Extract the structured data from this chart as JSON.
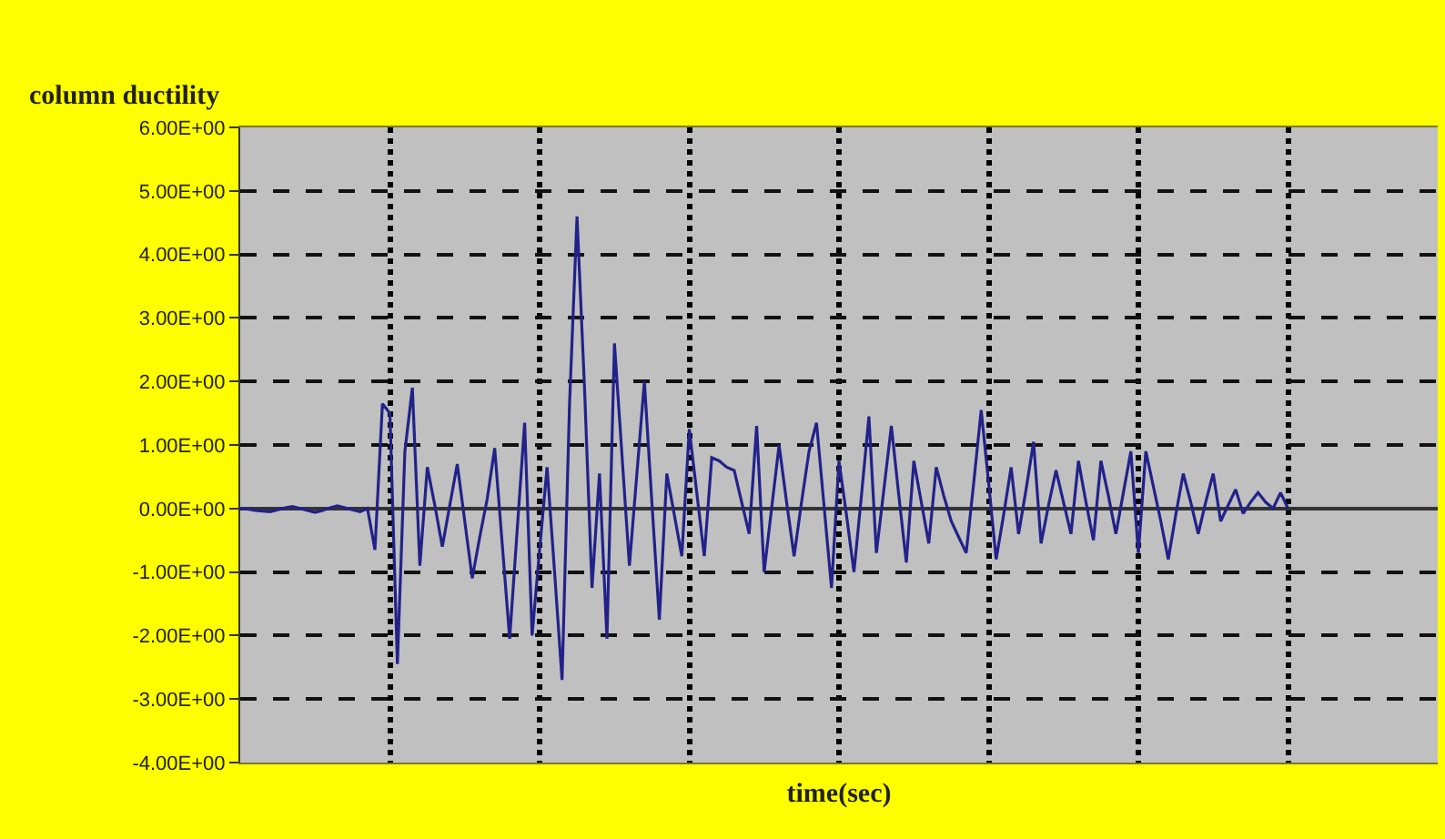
{
  "chart_data": {
    "type": "line",
    "ylabel": "column ductility",
    "xlabel": "time(sec)",
    "categories": [
      null,
      null,
      null,
      null,
      null,
      null,
      null,
      null,
      null,
      null,
      null,
      null,
      null,
      null,
      null,
      null,
      null,
      null,
      null,
      null,
      null,
      null,
      null,
      null,
      null,
      null,
      null,
      null,
      null,
      null,
      null,
      null,
      null,
      null,
      null,
      null,
      null,
      null,
      null,
      null,
      null,
      null,
      null,
      null,
      null,
      null,
      null,
      null,
      null,
      null,
      null,
      null,
      null,
      null,
      null,
      null,
      null,
      null,
      null,
      null,
      null,
      null,
      null,
      null,
      null,
      null,
      null,
      null,
      null,
      null,
      null,
      null,
      null,
      null,
      null,
      null,
      null,
      null,
      null,
      null,
      null,
      null,
      null,
      null,
      null,
      null,
      null,
      null,
      null,
      null,
      null,
      null,
      null,
      null,
      null,
      null,
      null,
      null,
      null,
      null,
      null,
      null,
      null,
      null,
      null,
      null,
      null,
      null,
      null,
      null,
      null,
      null,
      null,
      null,
      null,
      null,
      null,
      null,
      null,
      null,
      null,
      null,
      null,
      null,
      null,
      null,
      null,
      null,
      null,
      null,
      null,
      null,
      null,
      null,
      null,
      null,
      null,
      null,
      null,
      null,
      null,
      null,
      null,
      null,
      null,
      null,
      null,
      null,
      null,
      null,
      null,
      null,
      null,
      null,
      null,
      null,
      null,
      null,
      null,
      null,
      null
    ],
    "ylim": [
      -4,
      6
    ],
    "yticks": [
      {
        "value": 6,
        "label": "6.00E+00"
      },
      {
        "value": 5,
        "label": "5.00E+00"
      },
      {
        "value": 4,
        "label": "4.00E+00"
      },
      {
        "value": 3,
        "label": "3.00E+00"
      },
      {
        "value": 2,
        "label": "2.00E+00"
      },
      {
        "value": 1,
        "label": "1.00E+00"
      },
      {
        "value": 0,
        "label": "0.00E+00"
      },
      {
        "value": -1,
        "label": "-1.00E+00"
      },
      {
        "value": -2,
        "label": "-2.00E+00"
      },
      {
        "value": -3,
        "label": "-3.00E+00"
      },
      {
        "value": -4,
        "label": "-4.00E+00"
      }
    ],
    "grid": true,
    "marker": "none",
    "line_style": "solid",
    "series": [
      {
        "color": "#22228a",
        "values": [
          0,
          -0.01,
          -0.03,
          -0.04,
          -0.05,
          -0.02,
          0.01,
          0.03,
          0,
          -0.03,
          -0.06,
          -0.03,
          0.01,
          0.04,
          0.01,
          -0.02,
          -0.05,
          0,
          -0.65,
          1.65,
          1.5,
          -2.45,
          0.9,
          1.9,
          -0.9,
          0.65,
          0.05,
          -0.6,
          0.05,
          0.7,
          -0.2,
          -1.1,
          -0.45,
          0.15,
          0.95,
          -0.55,
          -2.05,
          -0.35,
          1.35,
          -2.0,
          -0.65,
          0.65,
          -1.0,
          -2.7,
          1.65,
          4.6,
          1.9,
          -1.25,
          0.55,
          -2.05,
          2.6,
          0.85,
          -0.9,
          0.55,
          2.0,
          0.1,
          -1.75,
          0.55,
          -0.1,
          -0.75,
          1.25,
          0.25,
          -0.75,
          0.8,
          0.75,
          0.65,
          0.6,
          0.1,
          -0.4,
          1.3,
          -1.0,
          0,
          1.0,
          0.1,
          -0.75,
          0.1,
          0.9,
          1.35,
          0.05,
          -1.25,
          0.75,
          -0.1,
          -1.0,
          0.2,
          1.45,
          -0.7,
          0.3,
          1.3,
          0.2,
          -0.85,
          0.75,
          0.1,
          -0.55,
          0.65,
          0.2,
          -0.2,
          -0.45,
          -0.7,
          0.4,
          1.55,
          0.4,
          -0.8,
          -0.1,
          0.65,
          -0.4,
          0.3,
          1.05,
          -0.55,
          0.05,
          0.6,
          0.1,
          -0.4,
          0.75,
          0.1,
          -0.5,
          0.75,
          0.2,
          -0.4,
          0.25,
          0.9,
          -0.7,
          0.9,
          0.35,
          -0.2,
          -0.8,
          -0.1,
          0.55,
          0.1,
          -0.4,
          0.1,
          0.55,
          -0.2,
          0.05,
          0.3,
          -0.08,
          0.1,
          0.25,
          0.1,
          0,
          0.25,
          0,
          null,
          null,
          null,
          null,
          null,
          null,
          null,
          null,
          null,
          null,
          null,
          null,
          null,
          null,
          null,
          null,
          null,
          null,
          null,
          null
        ]
      }
    ]
  }
}
